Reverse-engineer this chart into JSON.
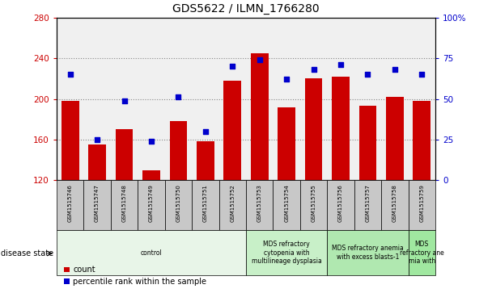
{
  "title": "GDS5622 / ILMN_1766280",
  "samples": [
    "GSM1515746",
    "GSM1515747",
    "GSM1515748",
    "GSM1515749",
    "GSM1515750",
    "GSM1515751",
    "GSM1515752",
    "GSM1515753",
    "GSM1515754",
    "GSM1515755",
    "GSM1515756",
    "GSM1515757",
    "GSM1515758",
    "GSM1515759"
  ],
  "counts": [
    198,
    155,
    170,
    130,
    178,
    158,
    218,
    245,
    192,
    220,
    222,
    193,
    202,
    198
  ],
  "percentiles": [
    65,
    25,
    49,
    24,
    51,
    30,
    70,
    74,
    62,
    68,
    71,
    65,
    68,
    65
  ],
  "bar_color": "#cc0000",
  "dot_color": "#0000cc",
  "ylim_left": [
    120,
    280
  ],
  "ylim_right": [
    0,
    100
  ],
  "yticks_left": [
    120,
    160,
    200,
    240,
    280
  ],
  "yticks_right": [
    0,
    25,
    50,
    75,
    100
  ],
  "disease_states": [
    {
      "label": "control",
      "start": 0,
      "end": 7,
      "color": "#e8f5e8"
    },
    {
      "label": "MDS refractory\ncytopenia with\nmultilineage dysplasia",
      "start": 7,
      "end": 10,
      "color": "#c8f0c8"
    },
    {
      "label": "MDS refractory anemia\nwith excess blasts-1",
      "start": 10,
      "end": 13,
      "color": "#b0e8b0"
    },
    {
      "label": "MDS\nrefractory ane\nmia with",
      "start": 13,
      "end": 14,
      "color": "#a0e8a0"
    }
  ],
  "disease_state_label": "disease state",
  "legend_count_label": "count",
  "legend_percentile_label": "percentile rank within the sample",
  "grid_color": "#888888",
  "tick_area_color": "#c8c8c8",
  "bg_color": "#f0f0f0"
}
